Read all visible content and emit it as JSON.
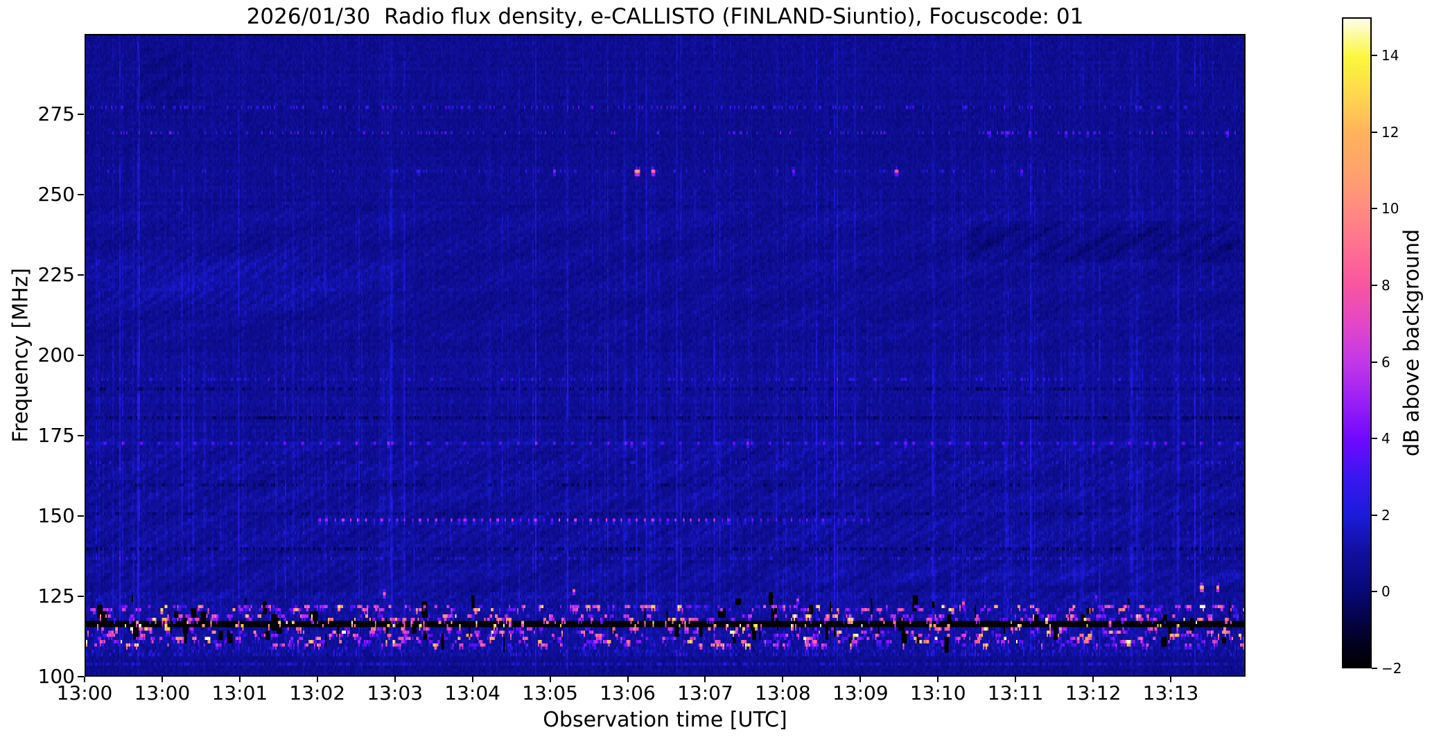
{
  "chart_data": {
    "type": "heatmap",
    "title": "2026/01/30  Radio flux density, e-CALLISTO (FINLAND-Siuntio), Focuscode: 01",
    "xlabel": "Observation time [UTC]",
    "ylabel": "Frequency [MHz]",
    "x_tick_labels": [
      "13:00",
      "13:00",
      "13:01",
      "13:02",
      "13:03",
      "13:04",
      "13:05",
      "13:06",
      "13:07",
      "13:08",
      "13:09",
      "13:10",
      "13:11",
      "13:12",
      "13:13"
    ],
    "y_tick_values": [
      275,
      250,
      225,
      200,
      175,
      150,
      125,
      100
    ],
    "x_range": {
      "start_utc": "13:00",
      "minutes_span": 14.97
    },
    "y_range_mhz": [
      100,
      300
    ],
    "grid": false,
    "colorbar": {
      "label": "dB above background",
      "tick_values": [
        14,
        12,
        10,
        8,
        6,
        4,
        2,
        0,
        -2
      ],
      "tick_labels": [
        "14",
        "12",
        "10",
        "8",
        "6",
        "4",
        "2",
        "0",
        "−2"
      ],
      "value_range": [
        -2,
        15
      ],
      "colormap_stops": [
        {
          "v": -2,
          "c": "#000000"
        },
        {
          "v": -1,
          "c": "#030236"
        },
        {
          "v": 0,
          "c": "#080878"
        },
        {
          "v": 1,
          "c": "#10109e"
        },
        {
          "v": 2,
          "c": "#1b1bdc"
        },
        {
          "v": 3,
          "c": "#3b16f0"
        },
        {
          "v": 4,
          "c": "#7108ff"
        },
        {
          "v": 5,
          "c": "#9b20f5"
        },
        {
          "v": 6,
          "c": "#c238e8"
        },
        {
          "v": 7,
          "c": "#e346c8"
        },
        {
          "v": 8,
          "c": "#f855a0"
        },
        {
          "v": 9,
          "c": "#ff6f92"
        },
        {
          "v": 10,
          "c": "#ff8b80"
        },
        {
          "v": 11,
          "c": "#ffa26c"
        },
        {
          "v": 12,
          "c": "#ffb25c"
        },
        {
          "v": 13,
          "c": "#ffd74e"
        },
        {
          "v": 14,
          "c": "#fbf73c"
        },
        {
          "v": 15,
          "c": "#fffdea"
        }
      ]
    },
    "seed": 20260130,
    "features": {
      "background_db": 0.6,
      "vertical_streaks": {
        "max_db": 2.0
      },
      "ripples_db": 0.2,
      "horizontal_bands": [
        {
          "freq_mhz": 278,
          "kind": "speckle",
          "strength_db": 2.2,
          "density": 0.2
        },
        {
          "freq_mhz": 270,
          "kind": "speckle",
          "strength_db": 2.6,
          "density": 0.16
        },
        {
          "freq_mhz": 258,
          "kind": "speckle",
          "strength_db": 1.6,
          "density": 0.1
        },
        {
          "freq_mhz": 193,
          "kind": "speckle",
          "strength_db": 1.5,
          "density": 0.16
        },
        {
          "freq_mhz": 190,
          "kind": "dark_dash",
          "strength_db": -1.0,
          "density": 0.45
        },
        {
          "freq_mhz": 181,
          "kind": "dark_dash",
          "strength_db": -1.2,
          "density": 0.45
        },
        {
          "freq_mhz": 173,
          "kind": "dash_row",
          "strength_db": 2.2,
          "period_s": 14
        },
        {
          "freq_mhz": 167,
          "kind": "speckle",
          "strength_db": 1.2,
          "density": 0.14
        },
        {
          "freq_mhz": 160,
          "kind": "dark_dash",
          "strength_db": -1.1,
          "density": 0.4
        },
        {
          "freq_mhz": 151,
          "kind": "dark_dash",
          "strength_db": -1.0,
          "density": 0.4
        },
        {
          "freq_mhz": 149,
          "kind": "dotted",
          "strength_db": 4.0,
          "period_s": 6,
          "t_start_min": 3.0,
          "t_end_min": 10.3
        },
        {
          "freq_mhz": 145,
          "kind": "speckle",
          "strength_db": 1.0,
          "density": 0.12
        },
        {
          "freq_mhz": 140,
          "kind": "dark_dash",
          "strength_db": -1.3,
          "density": 0.45
        },
        {
          "freq_mhz": 137,
          "kind": "speckle",
          "strength_db": 1.3,
          "density": 0.14
        },
        {
          "freq_mhz": 104.5,
          "kind": "speckle",
          "strength_db": 0.9,
          "density": 0.5
        }
      ],
      "regions": [
        {
          "kind": "bright_hump",
          "freq_range_mhz": [
            215,
            232
          ],
          "t_range_min": [
            0,
            4.2
          ],
          "strength_db": 0.6
        },
        {
          "kind": "dark_patch",
          "freq_range_mhz": [
            230,
            242
          ],
          "t_range_min": [
            11.4,
            14.9
          ],
          "strength_db": -0.65
        },
        {
          "kind": "dark_patch",
          "freq_range_mhz": [
            276,
            298
          ],
          "t_range_min": [
            0.7,
            1.35
          ],
          "strength_db": -0.5
        },
        {
          "kind": "bright_wavy",
          "freq_range_mhz": [
            129,
            134
          ],
          "t_range_min": [
            8.8,
            14.9
          ],
          "strength_db": 0.5
        }
      ],
      "rfi_complex": {
        "freq_range_mhz": [
          107,
          126
        ],
        "black_line_mhz": 117,
        "line_value_db": -2,
        "blob_lanes_above_mhz": [
          122,
          121,
          119,
          118
        ],
        "blob_lanes_below_mhz": [
          115,
          114,
          113,
          112,
          111,
          110
        ],
        "blob_db_range": [
          3,
          14.5
        ],
        "dropout_db": -2
      },
      "bright_spots": [
        {
          "t_min": 4.3,
          "freq_mhz": 258,
          "db": 3.5,
          "w": 2
        },
        {
          "t_min": 6.05,
          "freq_mhz": 258,
          "db": 5.5,
          "w": 2
        },
        {
          "t_min": 7.13,
          "freq_mhz": 258,
          "db": 11.0,
          "w": 4
        },
        {
          "t_min": 7.32,
          "freq_mhz": 258,
          "db": 9.5,
          "w": 3
        },
        {
          "t_min": 9.15,
          "freq_mhz": 258,
          "db": 5.0,
          "w": 2
        },
        {
          "t_min": 10.47,
          "freq_mhz": 258,
          "db": 8.0,
          "w": 3
        },
        {
          "t_min": 12.1,
          "freq_mhz": 258,
          "db": 4.5,
          "w": 2
        },
        {
          "t_min": 11.68,
          "freq_mhz": 270,
          "db": 4.5,
          "w": 2
        },
        {
          "t_min": 11.89,
          "freq_mhz": 270,
          "db": 4.5,
          "w": 2
        },
        {
          "t_min": 12.21,
          "freq_mhz": 270,
          "db": 5.0,
          "w": 2
        },
        {
          "t_min": 12.66,
          "freq_mhz": 270,
          "db": 4.5,
          "w": 2
        },
        {
          "t_min": 12.95,
          "freq_mhz": 270,
          "db": 4.0,
          "w": 2
        },
        {
          "t_min": 14.76,
          "freq_mhz": 270,
          "db": 5.0,
          "w": 2
        },
        {
          "t_min": 3.85,
          "freq_mhz": 126,
          "db": 10.0,
          "w": 2
        },
        {
          "t_min": 6.3,
          "freq_mhz": 127,
          "db": 10.0,
          "w": 2
        },
        {
          "t_min": 9.2,
          "freq_mhz": 124.5,
          "db": 7.0,
          "w": 2
        },
        {
          "t_min": 11.35,
          "freq_mhz": 123,
          "db": 9.0,
          "w": 2
        },
        {
          "t_min": 13.05,
          "freq_mhz": 125,
          "db": 5.0,
          "w": 2
        },
        {
          "t_min": 14.42,
          "freq_mhz": 128.5,
          "db": 13.0,
          "w": 3
        },
        {
          "t_min": 14.63,
          "freq_mhz": 128.5,
          "db": 12.0,
          "w": 2
        },
        {
          "t_min": 3.92,
          "freq_mhz": 173,
          "db": 6.0,
          "w": 2
        },
        {
          "t_min": 7.05,
          "freq_mhz": 173,
          "db": 5.0,
          "w": 2
        },
        {
          "t_min": 8.55,
          "freq_mhz": 173,
          "db": 5.5,
          "w": 2
        },
        {
          "t_min": 10.6,
          "freq_mhz": 173,
          "db": 5.0,
          "w": 2
        },
        {
          "t_min": 13.8,
          "freq_mhz": 173,
          "db": 4.5,
          "w": 2
        },
        {
          "t_min": 3.1,
          "freq_mhz": 149,
          "db": 6.0,
          "w": 2
        },
        {
          "t_min": 4.9,
          "freq_mhz": 149,
          "db": 6.5,
          "w": 2
        },
        {
          "t_min": 5.8,
          "freq_mhz": 149,
          "db": 6.0,
          "w": 2
        },
        {
          "t_min": 8.3,
          "freq_mhz": 149,
          "db": 5.5,
          "w": 2
        }
      ]
    }
  }
}
